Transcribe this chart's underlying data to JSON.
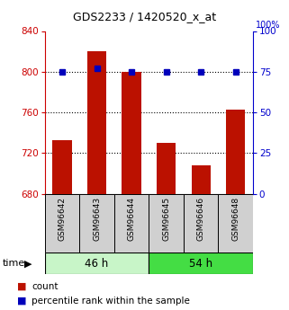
{
  "title": "GDS2233 / 1420520_x_at",
  "samples": [
    "GSM96642",
    "GSM96643",
    "GSM96644",
    "GSM96645",
    "GSM96646",
    "GSM96648"
  ],
  "counts": [
    733,
    820,
    800,
    730,
    708,
    763
  ],
  "percentiles": [
    75,
    77,
    75,
    75,
    75,
    75
  ],
  "groups": [
    {
      "label": "46 h",
      "color": "#c8f5c8"
    },
    {
      "label": "54 h",
      "color": "#44dd44"
    }
  ],
  "ylim_left": [
    680,
    840
  ],
  "ylim_right": [
    0,
    100
  ],
  "yticks_left": [
    680,
    720,
    760,
    800,
    840
  ],
  "yticks_right": [
    0,
    25,
    50,
    75,
    100
  ],
  "bar_color": "#bb1100",
  "dot_color": "#0000bb",
  "title_color": "#000000",
  "left_axis_color": "#cc0000",
  "right_axis_color": "#0000cc",
  "legend_items": [
    "count",
    "percentile rank within the sample"
  ]
}
